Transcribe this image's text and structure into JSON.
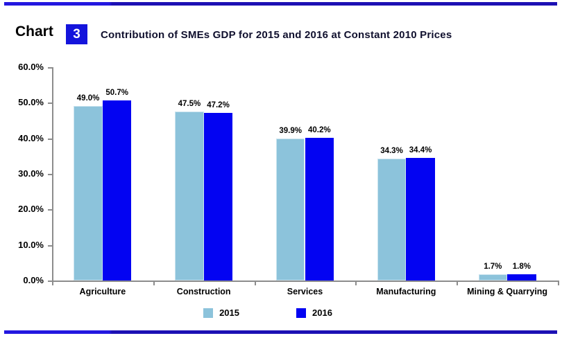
{
  "header": {
    "chart_word": "Chart",
    "chart_number": "3",
    "title": "Contribution of SMEs GDP for 2015 and 2016 at Constant 2010 Prices"
  },
  "colors": {
    "series_2015": "#8CC3DB",
    "series_2016": "#0303F2",
    "number_box": "#1414DC",
    "title_text": "#10102E",
    "axis_line": "#8C8C8C",
    "rule_bright": "#2317E0",
    "rule_dark": "#1C10B4",
    "label_text": "#000000",
    "background": "#FFFFFF"
  },
  "chart_data": {
    "type": "bar",
    "title": "Contribution of SMEs GDP for 2015 and 2016 at Constant 2010 Prices",
    "categories": [
      "Agriculture",
      "Construction",
      "Services",
      "Manufacturing",
      "Mining & Quarrying"
    ],
    "series": [
      {
        "name": "2015",
        "color": "#8CC3DB",
        "values": [
          49.0,
          47.5,
          39.9,
          34.3,
          1.7
        ],
        "labels": [
          "49.0%",
          "47.5%",
          "39.9%",
          "34.3%",
          "1.7%"
        ]
      },
      {
        "name": "2016",
        "color": "#0303F2",
        "values": [
          50.7,
          47.2,
          40.2,
          34.4,
          1.8
        ],
        "labels": [
          "50.7%",
          "47.2%",
          "40.2%",
          "34.4%",
          "1.8%"
        ]
      }
    ],
    "xlabel": "",
    "ylabel": "",
    "ylim": [
      0,
      60
    ],
    "ytick_step": 10,
    "ytick_labels": [
      "0.0%",
      "10.0%",
      "20.0%",
      "30.0%",
      "40.0%",
      "50.0%",
      "60.0%"
    ],
    "grid": false,
    "legend_position": "bottom"
  }
}
